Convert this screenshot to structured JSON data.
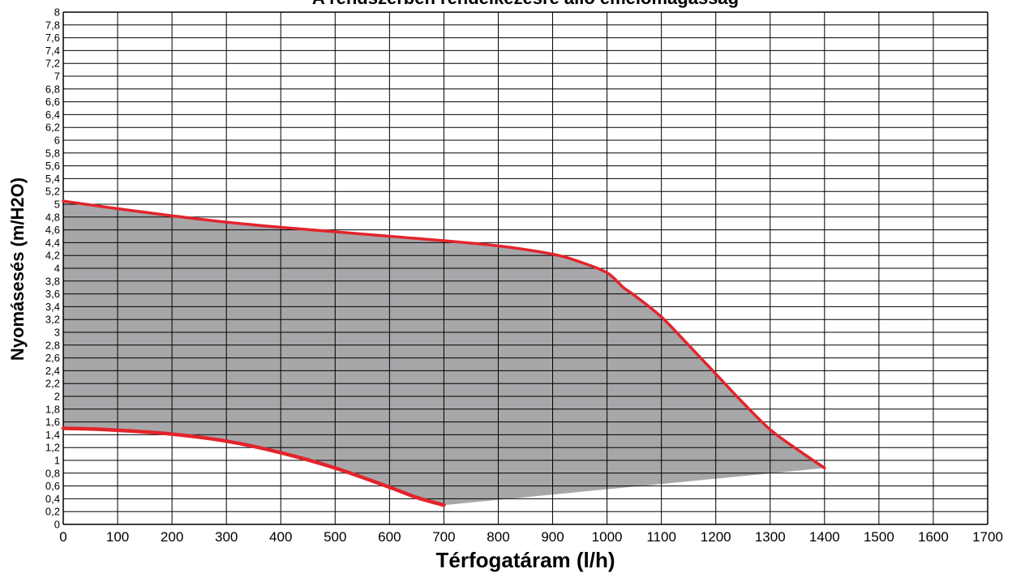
{
  "chart_data": {
    "type": "area",
    "title": "A rendszerben rendelkezésre álló emelőmagasság",
    "xlabel": "Térfogatáram (l/h)",
    "ylabel": "Nyomásesés (m/H2O)",
    "xlim": [
      0,
      1700
    ],
    "ylim": [
      0,
      8
    ],
    "x_ticks": [
      "0",
      "100",
      "200",
      "300",
      "400",
      "500",
      "600",
      "700",
      "800",
      "900",
      "1000",
      "1100",
      "1200",
      "1300",
      "1400",
      "1500",
      "1600",
      "1700"
    ],
    "x_tick_values": [
      0,
      100,
      200,
      300,
      400,
      500,
      600,
      700,
      800,
      900,
      1000,
      1100,
      1200,
      1300,
      1400,
      1500,
      1600,
      1700
    ],
    "y_ticks": [
      "0",
      "0,2",
      "0,4",
      "0,6",
      "0,8",
      "1",
      "1,2",
      "1,4",
      "1,6",
      "1,8",
      "2",
      "2,2",
      "2,4",
      "2,6",
      "2,8",
      "3",
      "3,2",
      "3,4",
      "3,6",
      "3,8",
      "4",
      "4,2",
      "4,4",
      "4,6",
      "4,8",
      "5",
      "5,2",
      "5,4",
      "5,6",
      "5,8",
      "6",
      "6,2",
      "6,4",
      "6,6",
      "6,8",
      "7",
      "7,2",
      "7,4",
      "7,6",
      "7,8",
      "8"
    ],
    "y_tick_values": [
      0,
      0.2,
      0.4,
      0.6,
      0.8,
      1,
      1.2,
      1.4,
      1.6,
      1.8,
      2,
      2.2,
      2.4,
      2.6,
      2.8,
      3,
      3.2,
      3.4,
      3.6,
      3.8,
      4,
      4.2,
      4.4,
      4.6,
      4.8,
      5,
      5.2,
      5.4,
      5.6,
      5.8,
      6,
      6.2,
      6.4,
      6.6,
      6.8,
      7,
      7.2,
      7.4,
      7.6,
      7.8,
      8
    ],
    "grid": true,
    "series": [
      {
        "role": "upper-curve",
        "x": [
          0,
          100,
          200,
          300,
          400,
          500,
          600,
          700,
          800,
          900,
          950,
          1000,
          1030,
          1050,
          1100,
          1150,
          1200,
          1250,
          1300,
          1350,
          1400
        ],
        "y": [
          5.05,
          4.93,
          4.82,
          4.72,
          4.64,
          4.57,
          4.5,
          4.43,
          4.35,
          4.22,
          4.1,
          3.93,
          3.7,
          3.58,
          3.24,
          2.8,
          2.35,
          1.9,
          1.48,
          1.17,
          0.88
        ]
      },
      {
        "role": "lower-curve",
        "x": [
          0,
          50,
          100,
          200,
          300,
          400,
          500,
          600,
          650,
          700
        ],
        "y": [
          1.5,
          1.49,
          1.47,
          1.41,
          1.3,
          1.12,
          0.88,
          0.58,
          0.42,
          0.3
        ]
      },
      {
        "role": "bottom-edge",
        "x": [
          700,
          1400
        ],
        "y": [
          0.3,
          0.88
        ]
      }
    ],
    "colors": {
      "area": "#a7a7aa",
      "curve": "#e3242b",
      "grid": "#000000",
      "background": "#ffffff"
    }
  }
}
